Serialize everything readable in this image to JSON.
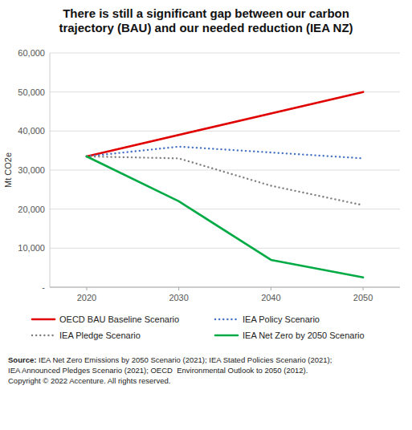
{
  "chart_data": {
    "type": "line",
    "title": "There is still a significant gap between our carbon\ntrajectory (BAU) and our needed reduction (IEA NZ)",
    "ylabel": "Mt CO2e",
    "xlim": [
      2016,
      2054
    ],
    "xticks": [
      2020,
      2030,
      2040,
      2050
    ],
    "ylim": [
      0,
      60000
    ],
    "yticks": [
      {
        "value": 0,
        "label": "-"
      },
      {
        "value": 10000,
        "label": "10,000"
      },
      {
        "value": 20000,
        "label": "20,000"
      },
      {
        "value": 30000,
        "label": "30,000"
      },
      {
        "value": 40000,
        "label": "40,000"
      },
      {
        "value": 50000,
        "label": "50,000"
      },
      {
        "value": 60000,
        "label": "60,000"
      }
    ],
    "grid": true,
    "series": [
      {
        "name": "OECD BAU Baseline Scenario",
        "color": "#e00000",
        "line_style": "solid",
        "x": [
          2020,
          2050
        ],
        "values": [
          33500,
          50000
        ]
      },
      {
        "name": "IEA Policy Scenario",
        "color": "#4472c4",
        "line_style": "dotted",
        "x": [
          2020,
          2030,
          2040,
          2050
        ],
        "values": [
          33500,
          36000,
          34500,
          33000
        ]
      },
      {
        "name": "IEA Pledge Scenario",
        "color": "#808080",
        "line_style": "dotted",
        "x": [
          2020,
          2030,
          2040,
          2050
        ],
        "values": [
          33500,
          33000,
          26000,
          21000
        ]
      },
      {
        "name": "IEA Net Zero by 2050 Scenario",
        "color": "#00aa44",
        "line_style": "solid",
        "x": [
          2020,
          2030,
          2040,
          2050
        ],
        "values": [
          33500,
          22000,
          7000,
          2500
        ]
      }
    ],
    "source_label": "Source:",
    "source": " IEA Net Zero Emissions by 2050 Scenario (2021); IEA Stated Policies Scenario (2021);\nIEA Announced Pledges Scenario (2021); OECD  Environmental Outlook to 2050 (2012).\nCopyright © 2022 Accenture. All rights reserved."
  }
}
